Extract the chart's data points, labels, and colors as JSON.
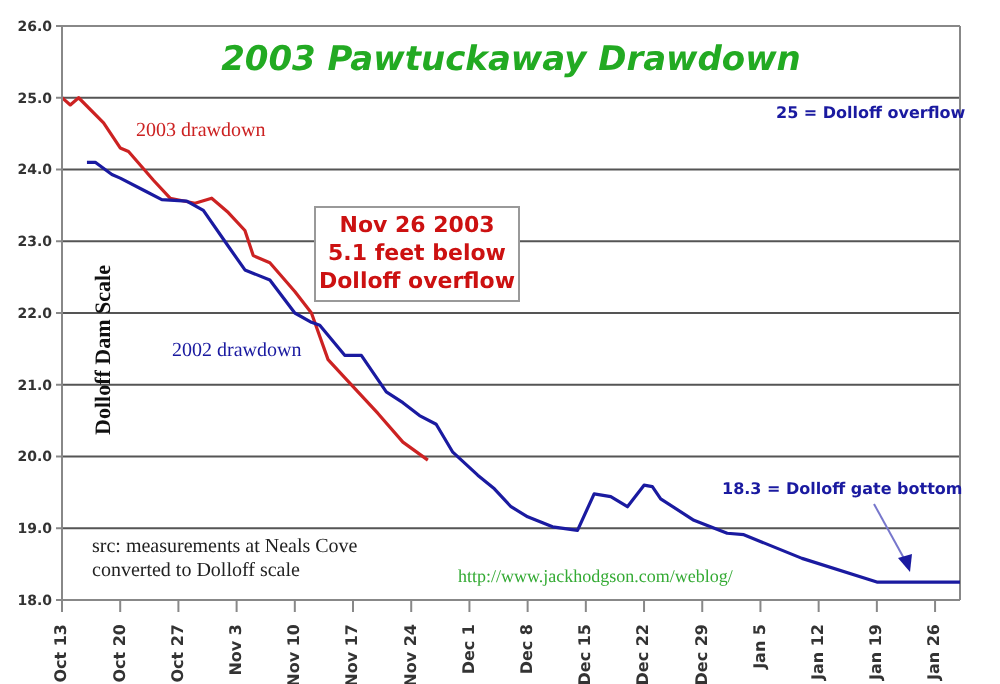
{
  "chart_data": {
    "type": "line",
    "title": "2003 Pawtuckaway Drawdown",
    "ylabel": "Dolloff Dam Scale",
    "annotations": [
      "Nov 26 2003\n5.1 feet below\nDolloff overflow",
      "25 = Dolloff overflow",
      "18.3 = Dolloff gate bottom",
      "src: measurements at Neals Cove\nconverted to Dolloff scale",
      "http://www.jackhodgson.com/weblog/"
    ],
    "series": [
      {
        "name": "2003 drawdown",
        "color": "#cc2222",
        "x": [
          "2002-10-13",
          "2002-10-14",
          "2002-10-15",
          "2002-10-18",
          "2002-10-20",
          "2002-10-21",
          "2002-10-24",
          "2002-10-26",
          "2002-10-29",
          "2002-10-31",
          "2002-11-02",
          "2002-11-04",
          "2002-11-05",
          "2002-11-07",
          "2002-11-10",
          "2002-11-12",
          "2002-11-14",
          "2002-11-16",
          "2002-11-20",
          "2002-11-23",
          "2002-11-26"
        ],
        "values": [
          25.0,
          24.9,
          25.0,
          24.65,
          24.3,
          24.25,
          23.85,
          23.6,
          23.53,
          23.6,
          23.4,
          23.15,
          22.8,
          22.7,
          22.3,
          22.0,
          21.35,
          21.1,
          20.6,
          20.2,
          19.95
        ]
      },
      {
        "name": "2002 drawdown",
        "color": "#1a1aa0",
        "x": [
          "2002-10-16",
          "2002-10-17",
          "2002-10-19",
          "2002-10-20",
          "2002-10-23",
          "2002-10-25",
          "2002-10-28",
          "2002-10-30",
          "2002-11-02",
          "2002-11-04",
          "2002-11-07",
          "2002-11-10",
          "2002-11-12",
          "2002-11-13",
          "2002-11-16",
          "2002-11-18",
          "2002-11-21",
          "2002-11-23",
          "2002-11-25",
          "2002-11-27",
          "2002-11-29",
          "2002-12-02",
          "2002-12-04",
          "2002-12-06",
          "2002-12-08",
          "2002-12-11",
          "2002-12-14",
          "2002-12-16",
          "2002-12-18",
          "2002-12-20",
          "2002-12-22",
          "2002-12-23",
          "2002-12-24",
          "2002-12-28",
          "2003-01-01",
          "2003-01-03",
          "2003-01-10",
          "2003-01-19",
          "2003-01-29"
        ],
        "values": [
          24.1,
          24.1,
          23.93,
          23.88,
          23.7,
          23.58,
          23.56,
          23.43,
          22.93,
          22.6,
          22.46,
          22.0,
          21.87,
          21.83,
          21.41,
          21.41,
          20.9,
          20.75,
          20.57,
          20.45,
          20.06,
          19.74,
          19.55,
          19.3,
          19.16,
          19.02,
          18.97,
          19.48,
          19.44,
          19.3,
          19.6,
          19.58,
          19.41,
          19.11,
          18.93,
          18.91,
          18.58,
          18.25,
          18.25
        ]
      }
    ],
    "xlim": [
      "2002-10-13",
      "2003-01-29"
    ],
    "xticks": [
      {
        "value": "2002-10-13",
        "label": "Oct 13"
      },
      {
        "value": "2002-10-20",
        "label": "Oct 20"
      },
      {
        "value": "2002-10-27",
        "label": "Oct 27"
      },
      {
        "value": "2002-11-03",
        "label": "Nov 3"
      },
      {
        "value": "2002-11-10",
        "label": "Nov 10"
      },
      {
        "value": "2002-11-17",
        "label": "Nov 17"
      },
      {
        "value": "2002-11-24",
        "label": "Nov 24"
      },
      {
        "value": "2002-12-01",
        "label": "Dec 1"
      },
      {
        "value": "2002-12-08",
        "label": "Dec 8"
      },
      {
        "value": "2002-12-15",
        "label": "Dec 15"
      },
      {
        "value": "2002-12-22",
        "label": "Dec 22"
      },
      {
        "value": "2002-12-29",
        "label": "Dec 29"
      },
      {
        "value": "2003-01-05",
        "label": "Jan 5"
      },
      {
        "value": "2003-01-12",
        "label": "Jan 12"
      },
      {
        "value": "2003-01-19",
        "label": "Jan 19"
      },
      {
        "value": "2003-01-26",
        "label": "Jan 26"
      }
    ],
    "ylim": [
      18,
      26
    ],
    "yticks": [
      {
        "value": 18,
        "label": "18.0"
      },
      {
        "value": 19,
        "label": "19.0"
      },
      {
        "value": 20,
        "label": "20.0"
      },
      {
        "value": 21,
        "label": "21.0"
      },
      {
        "value": 22,
        "label": "22.0"
      },
      {
        "value": 23,
        "label": "23.0"
      },
      {
        "value": 24,
        "label": "24.0"
      },
      {
        "value": 25,
        "label": "25.0"
      },
      {
        "value": 26,
        "label": "26.0"
      }
    ],
    "grid": "y"
  }
}
